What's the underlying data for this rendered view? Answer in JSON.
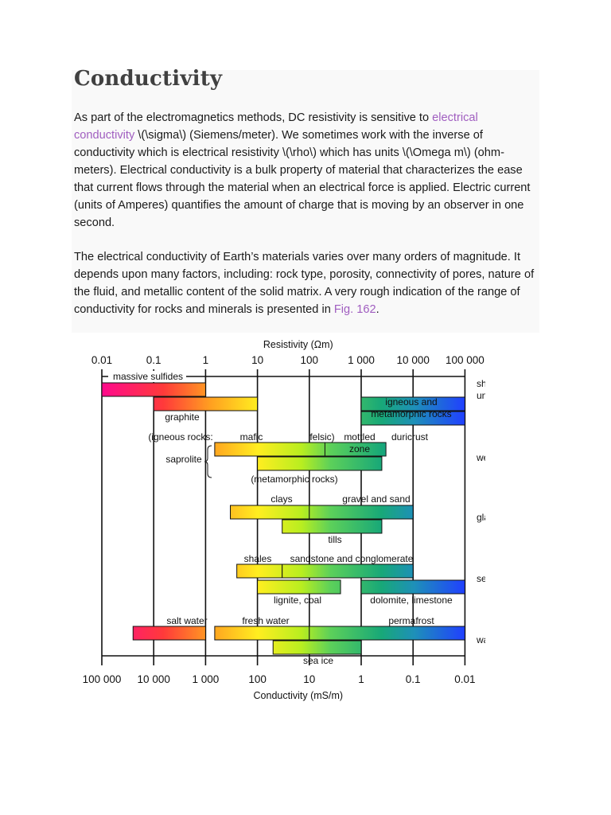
{
  "title": "Conductivity",
  "paragraph1": {
    "before_link": "As part of the electromagnetics methods, DC resistivity is sensitive to ",
    "link_text": "electrical conductivity",
    "after_link": " \\(\\sigma\\) (Siemens/meter). We sometimes work with the inverse of conductivity which is electrical resistivity \\(\\rho\\) which has units \\(\\Omega m\\) (ohm-meters). Electrical conductivity is a bulk property of material that characterizes the ease that current flows through the material when an electrical force is applied. Electric current (units of Amperes) quantifies the amount of charge that is moving by an observer in one second."
  },
  "paragraph2": {
    "text": "The electrical conductivity of Earth’s materials varies over many orders of magnitude. It depends upon many factors, including: rock type, porosity, connectivity of pores, nature of the fluid, and metallic content of the solid matrix. A very rough indication of the range of conductivity for rocks and minerals is presented in ",
    "link_text": "Fig. 162",
    "after_link": "."
  },
  "chart_data": {
    "type": "bar",
    "title": "",
    "top_axis_label": "Resistivity (Ωm)",
    "bottom_axis_label": "Conductivity (mS/m)",
    "log_scale": true,
    "resistivity_ticks": [
      "0.01",
      "0.1",
      "1",
      "10",
      "100",
      "1 000",
      "10 000",
      "100 000"
    ],
    "conductivity_ticks": [
      "100 000",
      "10 000",
      "1 000",
      "100",
      "10",
      "1",
      "0.1",
      "0.01"
    ],
    "xlim_resistivity": [
      0.01,
      100000
    ],
    "bars": [
      {
        "label": "massive sulfides",
        "min": 0.01,
        "max": 1
      },
      {
        "label": "shield unweathered rocks",
        "min": 1000,
        "max": 100000
      },
      {
        "label": "graphite",
        "min": 0.1,
        "max": 10
      },
      {
        "label": "igneous and metamorphic rocks",
        "min": 1000,
        "max": 100000
      },
      {
        "label": "saprolite (igneous rocks: mafic, felsic)",
        "min": 1.5,
        "max": 400
      },
      {
        "label": "mottled zone / duricrust",
        "min": 200,
        "max": 3000
      },
      {
        "label": "saprolite (metamorphic rocks)",
        "min": 10,
        "max": 2500
      },
      {
        "label": "clays",
        "min": 3,
        "max": 100
      },
      {
        "label": "gravel and sand",
        "min": 100,
        "max": 10000
      },
      {
        "label": "tills",
        "min": 30,
        "max": 2500
      },
      {
        "label": "shales",
        "min": 4,
        "max": 30
      },
      {
        "label": "sandstone and conglomerate",
        "min": 30,
        "max": 10000
      },
      {
        "label": "lignite, coal",
        "min": 10,
        "max": 400
      },
      {
        "label": "dolomite, limestone",
        "min": 1000,
        "max": 100000
      },
      {
        "label": "salt water",
        "min": 0.04,
        "max": 1
      },
      {
        "label": "fresh water",
        "min": 1.5,
        "max": 100
      },
      {
        "label": "permafrost",
        "min": 100,
        "max": 100000
      },
      {
        "label": "sea ice",
        "min": 20,
        "max": 1000
      }
    ],
    "row_groups": [
      "shield",
      "unweathered rocks",
      "weathered layered",
      "glacial sediments",
      "sedimentary rocks",
      "water, aquifers"
    ],
    "annotations": [
      "(igneous rocks:",
      "mafic",
      "felsic)",
      "mottled",
      "zone",
      "duricrust",
      "saprolite",
      "(metamorphic rocks)"
    ]
  },
  "colors": {
    "title": "#404040",
    "link": "#a05ec0",
    "bar_low_resistivity": "#ff0a8c",
    "bar_high_resistivity": "#2040ff"
  }
}
